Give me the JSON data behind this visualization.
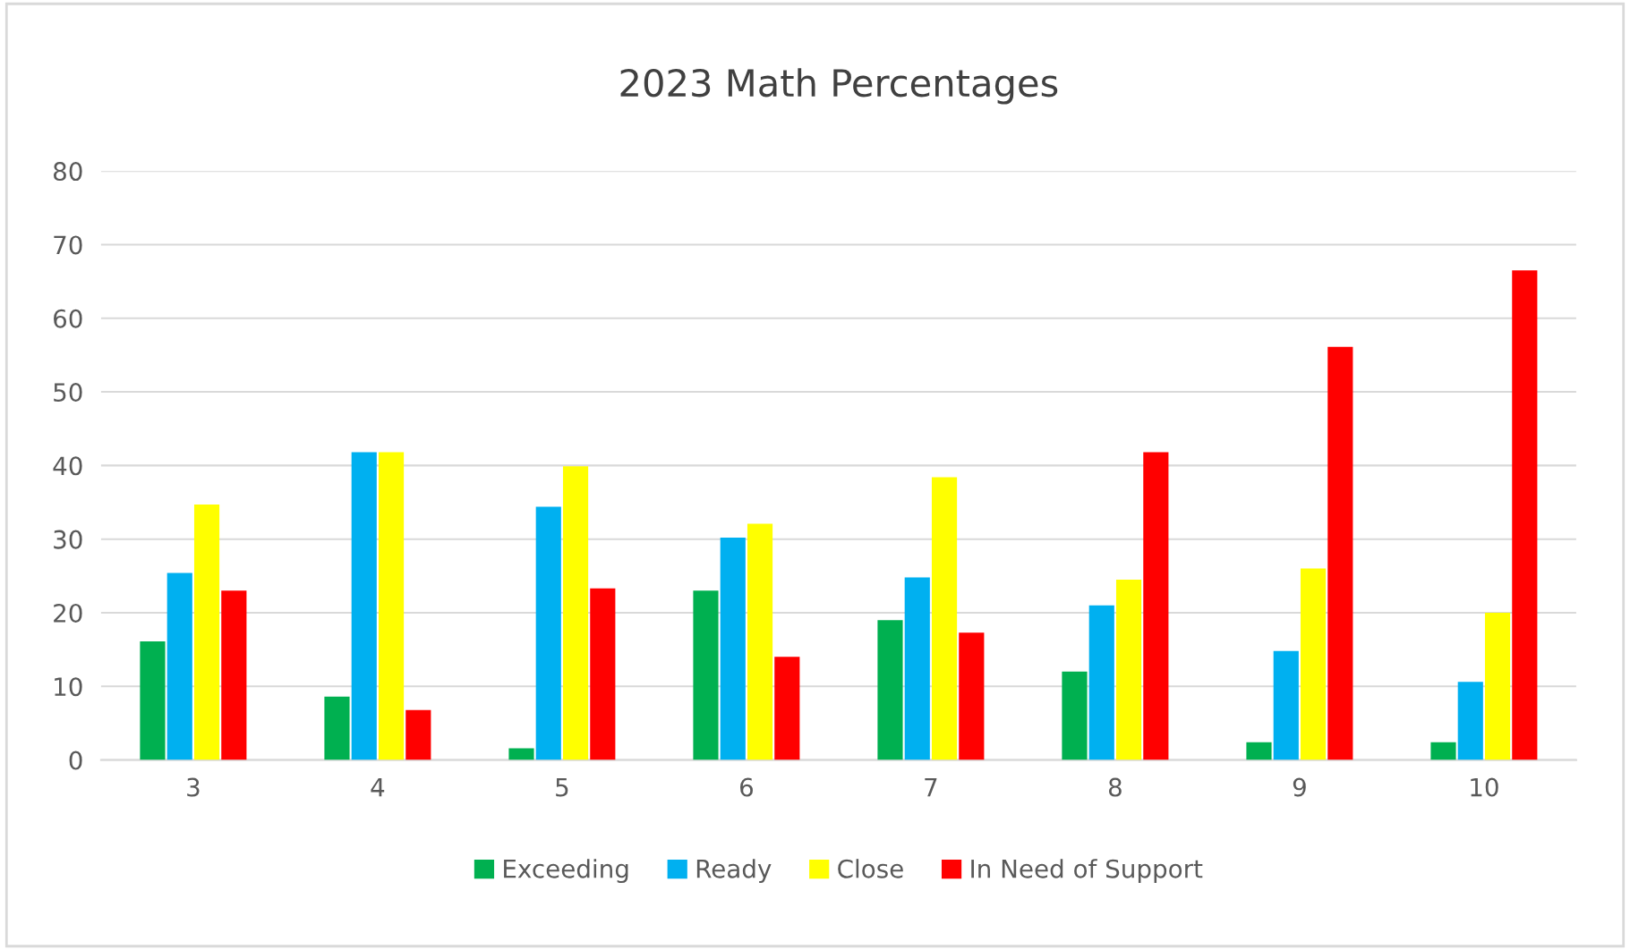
{
  "chart_data": {
    "type": "bar",
    "title": "2023 Math Percentages",
    "categories": [
      "3",
      "4",
      "5",
      "6",
      "7",
      "8",
      "9",
      "10"
    ],
    "series": [
      {
        "name": "Exceeding",
        "color": "#00b050",
        "values": [
          16.1,
          8.6,
          1.6,
          23.0,
          19.0,
          12.0,
          2.4,
          2.4
        ]
      },
      {
        "name": "Ready",
        "color": "#00b0f0",
        "values": [
          25.4,
          41.8,
          34.4,
          30.2,
          24.8,
          21.0,
          14.8,
          10.6
        ]
      },
      {
        "name": "Close",
        "color": "#ffff00",
        "values": [
          34.7,
          41.8,
          39.9,
          32.1,
          38.4,
          24.5,
          26.0,
          20.0
        ]
      },
      {
        "name": "In Need of Support",
        "color": "#ff0000",
        "values": [
          23.0,
          6.8,
          23.3,
          14.0,
          17.3,
          41.8,
          56.1,
          66.5
        ]
      }
    ],
    "ylim": [
      0,
      80
    ],
    "yticks": [
      0,
      10,
      20,
      30,
      40,
      50,
      60,
      70,
      80
    ],
    "grid": "y",
    "legend": "bottom"
  }
}
